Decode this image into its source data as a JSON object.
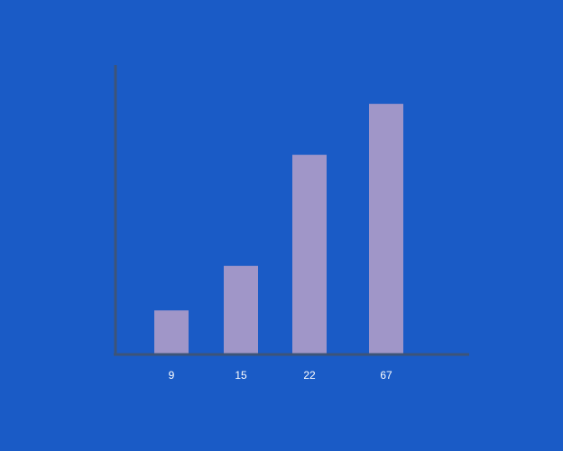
{
  "chart_data": {
    "type": "bar",
    "categories": [
      "9",
      "15",
      "22",
      "67"
    ],
    "values": [
      10.2,
      20.5,
      46.2,
      58
    ],
    "title": "",
    "xlabel": "",
    "ylabel": "",
    "ylim": [
      0,
      67
    ],
    "grid": false,
    "colors": {
      "background": "#1a5bc6",
      "bar": "#a096c8",
      "axis": "#3d5478",
      "tick_text": "#ffffff"
    }
  }
}
